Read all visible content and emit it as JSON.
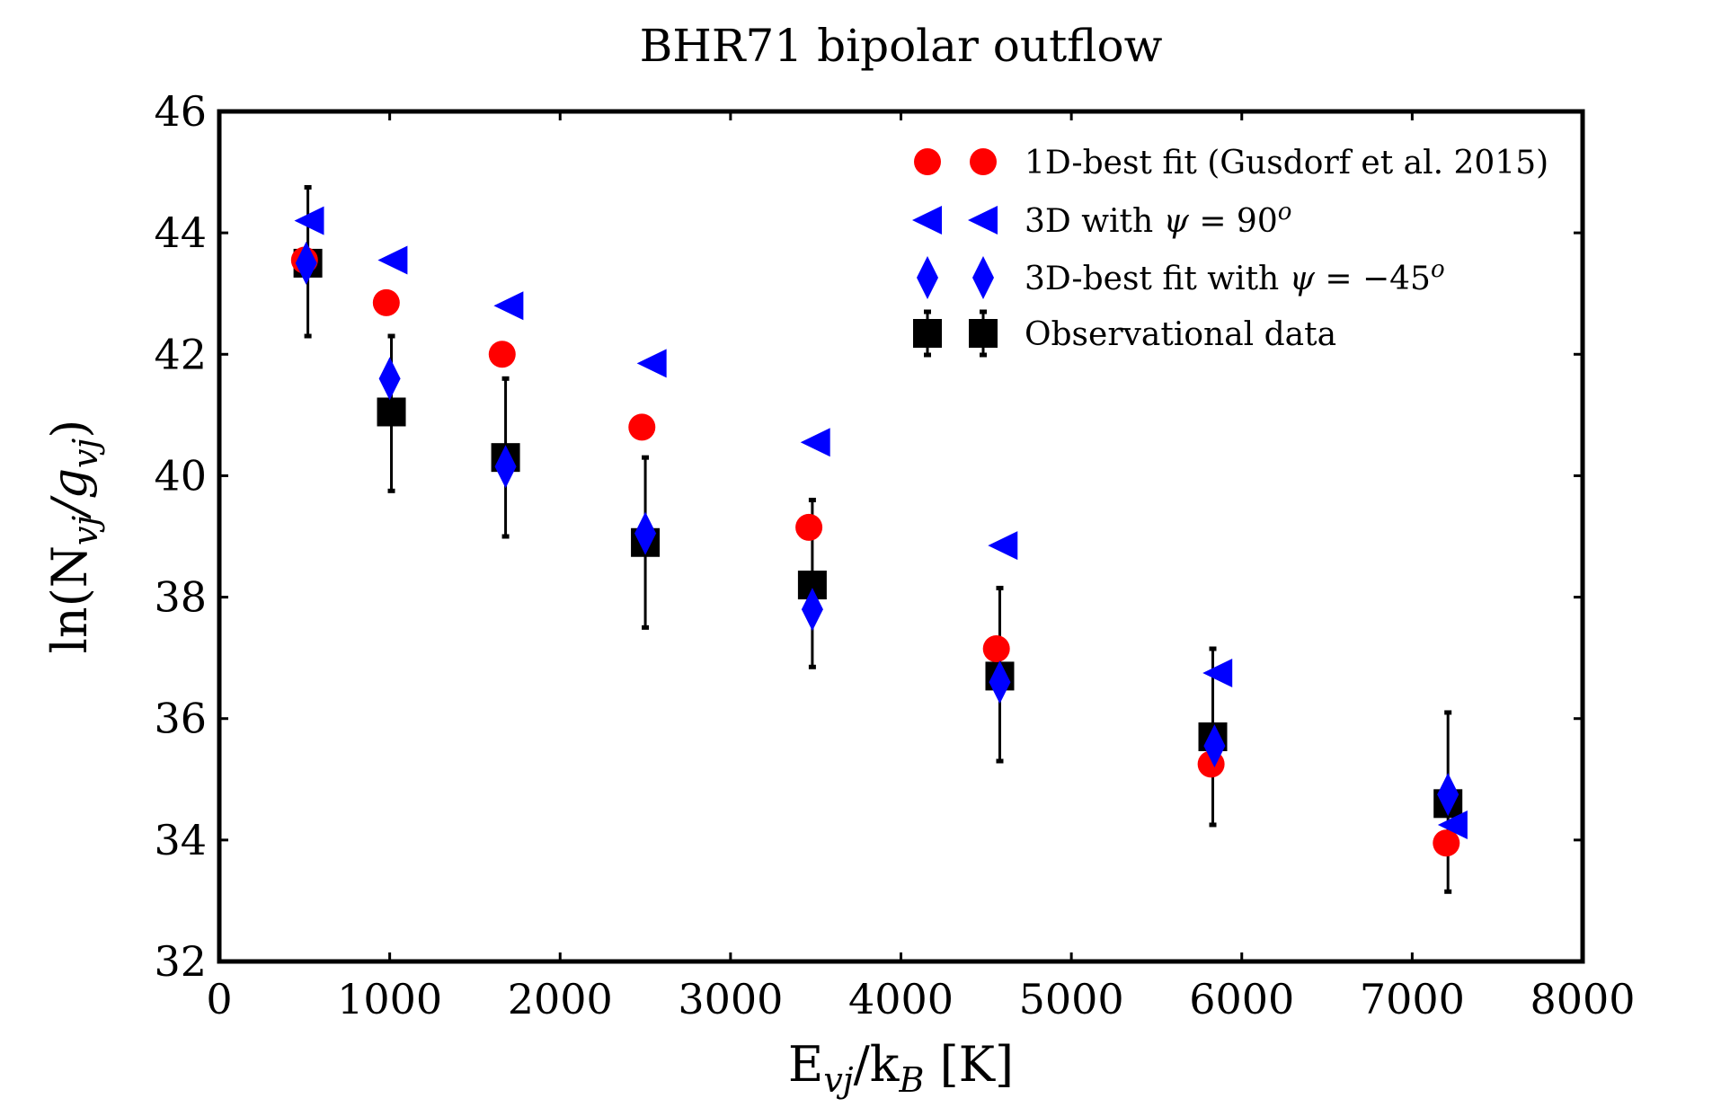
{
  "chart_data": {
    "type": "scatter",
    "title": "BHR71 bipolar outflow",
    "xlabel": {
      "base": "E",
      "sub": "vj",
      "mid": "/k",
      "sub2": "B",
      "tail": " [K]"
    },
    "ylabel": {
      "prefix": "ln(N",
      "sub": "vj",
      "mid": "/g",
      "sub2": "vj",
      "tail": ")"
    },
    "xlim": [
      0,
      8000
    ],
    "ylim": [
      32,
      46
    ],
    "xticks": [
      0,
      1000,
      2000,
      3000,
      4000,
      5000,
      6000,
      7000,
      8000
    ],
    "yticks": [
      32,
      34,
      36,
      38,
      40,
      42,
      44,
      46
    ],
    "legend_position": "top-right",
    "series": [
      {
        "name": "1D-best fit (Gusdorf et al. 2015)",
        "marker": "circle",
        "color": "#ff0000",
        "x": [
          500,
          980,
          1660,
          2480,
          3460,
          4560,
          5820,
          7200
        ],
        "y": [
          43.55,
          42.85,
          42.0,
          40.8,
          39.15,
          37.15,
          35.25,
          33.95
        ]
      },
      {
        "name": "3D with ψ = 90°",
        "legend_parts": {
          "text": "3D with ",
          "sym": "ψ",
          "eq": " = 90",
          "sup": "o"
        },
        "marker": "triangle-left",
        "color": "#0000ff",
        "x": [
          530,
          1020,
          1700,
          2540,
          3500,
          4600,
          5860,
          7240
        ],
        "y": [
          44.2,
          43.55,
          42.8,
          41.85,
          40.55,
          38.85,
          36.75,
          34.25
        ]
      },
      {
        "name": "3D-best fit with ψ = −45°",
        "legend_parts": {
          "text": "3D-best fit with ",
          "sym": "ψ",
          "eq": " = −45",
          "sup": "o"
        },
        "marker": "diamond",
        "color": "#0000ff",
        "x": [
          510,
          1000,
          1680,
          2500,
          3480,
          4580,
          5840,
          7210
        ],
        "y": [
          43.5,
          41.6,
          40.15,
          39.05,
          37.8,
          36.6,
          35.55,
          34.75
        ]
      },
      {
        "name": "Observational data",
        "marker": "square",
        "color": "#000000",
        "x": [
          520,
          1010,
          1680,
          2500,
          3480,
          4580,
          5830,
          7210
        ],
        "y": [
          43.5,
          41.05,
          40.3,
          38.9,
          38.2,
          36.7,
          35.7,
          34.6
        ],
        "yerr_low": [
          42.3,
          39.75,
          39.0,
          37.5,
          36.85,
          35.3,
          34.25,
          33.15
        ],
        "yerr_high": [
          44.75,
          42.3,
          41.6,
          40.3,
          39.6,
          38.15,
          37.15,
          36.1
        ]
      }
    ]
  }
}
